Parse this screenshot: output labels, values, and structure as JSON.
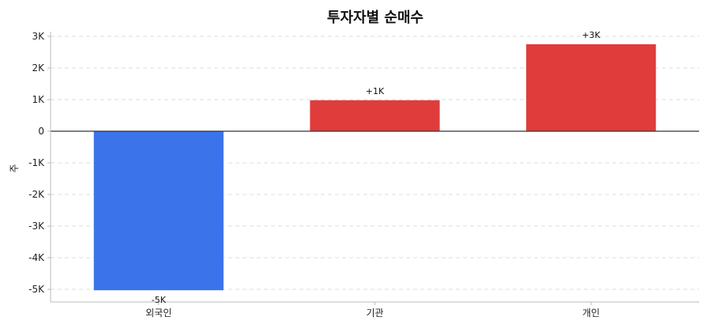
{
  "chart_data": {
    "type": "bar",
    "title": "투자자별 순매수",
    "xlabel": "",
    "ylabel": "주",
    "categories": [
      "외국인",
      "기관",
      "개인"
    ],
    "values": [
      -5030,
      980,
      2750
    ],
    "data_labels": [
      "-5K",
      "+1K",
      "+3K"
    ],
    "ylim": [
      -5400,
      3150
    ],
    "yticks": [
      -5000,
      -4000,
      -3000,
      -2000,
      -1000,
      0,
      1000,
      2000,
      3000
    ],
    "ytick_labels": [
      "-5K",
      "-4K",
      "-3K",
      "-2K",
      "-1K",
      "0",
      "1K",
      "2K",
      "3K"
    ],
    "colors": {
      "positive": "#e03c3c",
      "negative": "#3b74ea"
    },
    "grid": true,
    "legend": "none"
  }
}
